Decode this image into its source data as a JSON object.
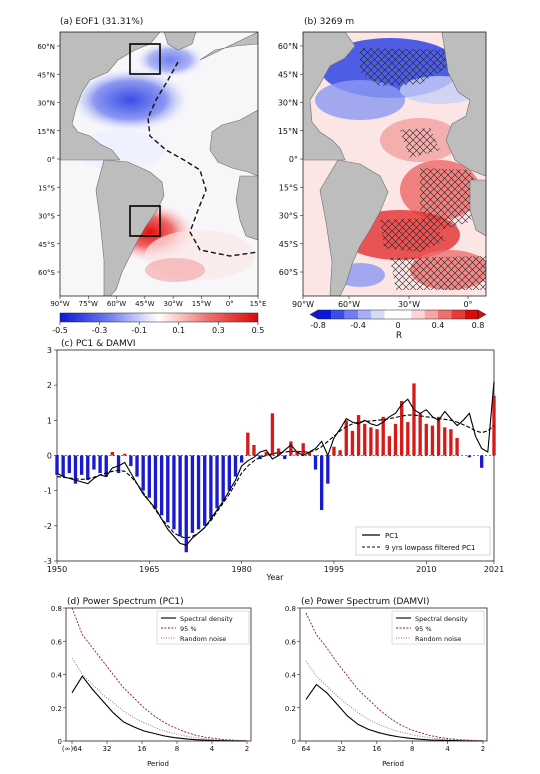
{
  "chart_data": [
    {
      "type": "heatmap",
      "panel": "a",
      "title": "(a) EOF1 (31.31%)",
      "lon_ticks": [
        "90°W",
        "75°W",
        "60°W",
        "45°W",
        "30°W",
        "15°W",
        "0°",
        "15°E"
      ],
      "lat_ticks": [
        "60°N",
        "45°N",
        "30°N",
        "15°N",
        "0°",
        "15°S",
        "30°S",
        "45°S",
        "60°S"
      ],
      "colorbar": {
        "ticks": [
          "-0.5",
          "-0.3",
          "-0.1",
          "0.1",
          "0.3",
          "0.5"
        ],
        "range": [
          -0.5,
          0.5
        ]
      },
      "regions": [
        {
          "region": "Subpolar North Atlantic",
          "sign": "negative"
        },
        {
          "region": "South Atlantic 30-45°S",
          "sign": "positive"
        }
      ]
    },
    {
      "type": "heatmap",
      "panel": "b",
      "title": "(b) 3269 m",
      "lon_ticks": [
        "90°W",
        "60°W",
        "30°W",
        "0°"
      ],
      "lat_ticks": [
        "60°N",
        "45°N",
        "30°N",
        "15°N",
        "0°",
        "15°S",
        "30°S",
        "45°S",
        "60°S"
      ],
      "colorbar": {
        "ticks": [
          "-0.8",
          "-0.4",
          "0",
          "0.4",
          "0.8"
        ],
        "range": [
          -0.8,
          0.8
        ],
        "label": "R"
      }
    },
    {
      "type": "bar",
      "panel": "c",
      "title": "(c) PC1 & DAMVI",
      "xlabel": "Year",
      "xticks": [
        "1950",
        "1965",
        "1980",
        "1995",
        "2010",
        "2021"
      ],
      "yticks": [
        "-3",
        "-2",
        "-1",
        "0",
        "1",
        "2",
        "3"
      ],
      "xlim": [
        1950,
        2021
      ],
      "ylim": [
        -3,
        3
      ],
      "years": [
        1950,
        1951,
        1952,
        1953,
        1954,
        1955,
        1956,
        1957,
        1958,
        1959,
        1960,
        1961,
        1962,
        1963,
        1964,
        1965,
        1966,
        1967,
        1968,
        1969,
        1970,
        1971,
        1972,
        1973,
        1974,
        1975,
        1976,
        1977,
        1978,
        1979,
        1980,
        1981,
        1982,
        1983,
        1984,
        1985,
        1986,
        1987,
        1988,
        1989,
        1990,
        1991,
        1992,
        1993,
        1994,
        1995,
        1996,
        1997,
        1998,
        1999,
        2000,
        2001,
        2002,
        2003,
        2004,
        2005,
        2006,
        2007,
        2008,
        2009,
        2010,
        2011,
        2012,
        2013,
        2014,
        2015,
        2016,
        2017,
        2018,
        2019,
        2020,
        2021
      ],
      "bars": [
        -0.55,
        -0.6,
        -0.5,
        -0.8,
        -0.55,
        -0.7,
        -0.4,
        -0.5,
        -0.6,
        0.1,
        -0.5,
        0.05,
        -0.3,
        -0.6,
        -1.0,
        -1.2,
        -1.5,
        -1.7,
        -1.9,
        -2.1,
        -2.3,
        -2.75,
        -2.2,
        -2.1,
        -2.0,
        -1.8,
        -1.5,
        -1.3,
        -1.0,
        -0.6,
        -0.2,
        0.65,
        0.3,
        -0.1,
        0.1,
        1.2,
        0.2,
        -0.1,
        0.4,
        0.1,
        0.35,
        0.1,
        -0.4,
        -1.55,
        -0.8,
        0.25,
        0.15,
        1.0,
        0.7,
        1.15,
        0.9,
        0.8,
        0.75,
        1.1,
        0.55,
        0.9,
        1.55,
        0.95,
        2.05,
        1.2,
        0.9,
        0.85,
        1.1,
        0.8,
        0.75,
        0.5,
        0.0,
        -0.05,
        0.0,
        -0.35,
        0.0,
        1.7
      ],
      "series": [
        {
          "name": "PC1",
          "values": [
            -0.5,
            -0.6,
            -0.65,
            -0.7,
            -0.75,
            -0.8,
            -0.65,
            -0.55,
            -0.6,
            -0.35,
            -0.3,
            -0.2,
            -0.5,
            -0.8,
            -1.1,
            -1.3,
            -1.5,
            -1.8,
            -2.1,
            -2.3,
            -2.5,
            -2.55,
            -2.35,
            -2.2,
            -2.05,
            -1.8,
            -1.55,
            -1.3,
            -1.0,
            -0.7,
            -0.3,
            -0.15,
            -0.05,
            0.1,
            0.15,
            -0.1,
            0.0,
            0.15,
            0.3,
            0.1,
            0.0,
            0.1,
            0.2,
            0.4,
            0.0,
            0.5,
            0.75,
            1.05,
            0.95,
            0.9,
            1.0,
            0.9,
            0.85,
            0.95,
            1.1,
            1.2,
            1.45,
            1.6,
            1.3,
            1.2,
            1.3,
            1.1,
            1.0,
            1.25,
            1.05,
            0.85,
            1.0,
            1.2,
            0.55,
            0.2,
            0.1,
            2.1
          ]
        },
        {
          "name": "9 yrs lowpass filtered PC1",
          "values": [
            -0.6,
            -0.62,
            -0.64,
            -0.66,
            -0.68,
            -0.66,
            -0.62,
            -0.55,
            -0.5,
            -0.45,
            -0.42,
            -0.45,
            -0.6,
            -0.8,
            -1.05,
            -1.3,
            -1.55,
            -1.8,
            -2.0,
            -2.2,
            -2.3,
            -2.35,
            -2.3,
            -2.2,
            -2.05,
            -1.85,
            -1.6,
            -1.35,
            -1.1,
            -0.8,
            -0.5,
            -0.3,
            -0.15,
            -0.05,
            0.0,
            0.05,
            0.08,
            0.1,
            0.12,
            0.12,
            0.1,
            0.1,
            0.15,
            0.25,
            0.4,
            0.55,
            0.7,
            0.82,
            0.9,
            0.95,
            0.97,
            0.98,
            1.0,
            1.02,
            1.05,
            1.08,
            1.12,
            1.15,
            1.15,
            1.13,
            1.1,
            1.08,
            1.05,
            1.03,
            1.0,
            0.95,
            0.88,
            0.8,
            0.7,
            0.65,
            0.7,
            0.85
          ]
        }
      ]
    },
    {
      "type": "line",
      "panel": "d",
      "title": "(d) Power Spectrum (PC1)",
      "xlabel": "Period",
      "xticks": [
        "(∞)64",
        "32",
        "16",
        "8",
        "4",
        "2"
      ],
      "yticks": [
        "0",
        "0.2",
        "0.4",
        "0.6",
        "0.8"
      ],
      "ylim": [
        0,
        0.8
      ],
      "series": [
        {
          "name": "Spectral density",
          "values": [
            0.29,
            0.39,
            0.31,
            0.24,
            0.17,
            0.115,
            0.085,
            0.06,
            0.045,
            0.03,
            0.02,
            0.013,
            0.008,
            0.005,
            0.003,
            0.002,
            0.001,
            0.0005
          ]
        },
        {
          "name": "95 %",
          "values": [
            0.8,
            0.64,
            0.56,
            0.48,
            0.4,
            0.32,
            0.26,
            0.2,
            0.15,
            0.11,
            0.08,
            0.055,
            0.035,
            0.022,
            0.014,
            0.008,
            0.004,
            0.002
          ]
        },
        {
          "name": "Random noise",
          "values": [
            0.5,
            0.4,
            0.34,
            0.28,
            0.23,
            0.18,
            0.14,
            0.11,
            0.082,
            0.06,
            0.043,
            0.03,
            0.02,
            0.013,
            0.008,
            0.005,
            0.003,
            0.001
          ]
        }
      ]
    },
    {
      "type": "line",
      "panel": "e",
      "title": "(e) Power Spectrum (DAMVI)",
      "xlabel": "Period",
      "xticks": [
        "64",
        "32",
        "16",
        "8",
        "4",
        "2"
      ],
      "yticks": [
        "0",
        "0.2",
        "0.4",
        "0.6",
        "0.8"
      ],
      "ylim": [
        0,
        0.8
      ],
      "series": [
        {
          "name": "Spectral density",
          "values": [
            0.25,
            0.34,
            0.29,
            0.22,
            0.15,
            0.1,
            0.07,
            0.05,
            0.035,
            0.024,
            0.016,
            0.01,
            0.006,
            0.004,
            0.003,
            0.002,
            0.001,
            0.0005
          ]
        },
        {
          "name": "95 %",
          "values": [
            0.77,
            0.64,
            0.56,
            0.47,
            0.39,
            0.31,
            0.25,
            0.19,
            0.14,
            0.1,
            0.07,
            0.05,
            0.032,
            0.02,
            0.012,
            0.007,
            0.004,
            0.002
          ]
        },
        {
          "name": "Random noise",
          "values": [
            0.48,
            0.39,
            0.33,
            0.27,
            0.22,
            0.17,
            0.13,
            0.1,
            0.075,
            0.055,
            0.04,
            0.028,
            0.018,
            0.012,
            0.007,
            0.004,
            0.002,
            0.001
          ]
        }
      ]
    }
  ]
}
